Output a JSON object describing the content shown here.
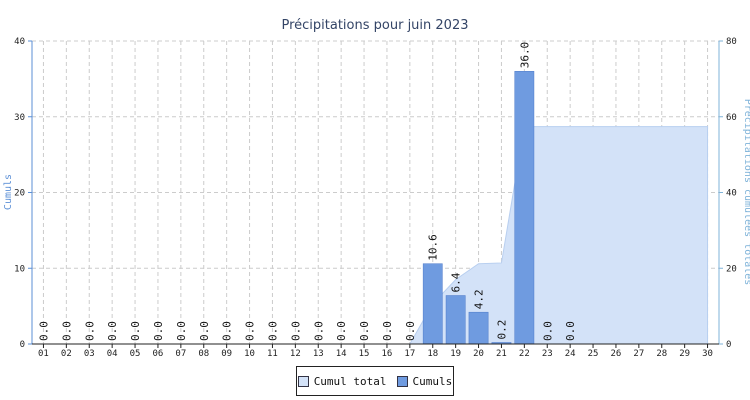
{
  "chart_data": {
    "type": "bar",
    "title": "Précipitations pour juin 2023",
    "categories": [
      "01",
      "02",
      "03",
      "04",
      "05",
      "06",
      "07",
      "08",
      "09",
      "10",
      "11",
      "12",
      "13",
      "14",
      "15",
      "16",
      "17",
      "18",
      "19",
      "20",
      "21",
      "22",
      "23",
      "24",
      "25",
      "26",
      "27",
      "28",
      "29",
      "30"
    ],
    "series": [
      {
        "name": "Cumuls",
        "type": "bar",
        "axis": "left",
        "values": [
          0,
          0,
          0,
          0,
          0,
          0,
          0,
          0,
          0,
          0,
          0,
          0,
          0,
          0,
          0,
          0,
          0,
          10.6,
          6.4,
          4.2,
          0.2,
          36.0,
          0,
          0,
          null,
          null,
          null,
          null,
          null,
          null
        ],
        "labels": [
          "0.0",
          "0.0",
          "0.0",
          "0.0",
          "0.0",
          "0.0",
          "0.0",
          "0.0",
          "0.0",
          "0.0",
          "0.0",
          "0.0",
          "0.0",
          "0.0",
          "0.0",
          "0.0",
          "0.0",
          "10.6",
          "6.4",
          "4.2",
          "0.2",
          "36.0",
          "0.0",
          "0.0",
          "",
          "",
          "",
          "",
          "",
          ""
        ]
      },
      {
        "name": "Cumul total",
        "type": "area",
        "axis": "right",
        "values": [
          0,
          0,
          0,
          0,
          0,
          0,
          0,
          0,
          0,
          0,
          0,
          0,
          0,
          0,
          0,
          0,
          0,
          10.6,
          17.0,
          21.2,
          21.4,
          57.4,
          57.4,
          57.4,
          57.4,
          57.4,
          57.4,
          57.4,
          57.4,
          57.4
        ]
      }
    ],
    "ylabel": "Cumuls",
    "y2label": "Précipitations cumulées totales",
    "ylim": [
      0,
      40
    ],
    "y2lim": [
      0,
      80
    ],
    "yticks": [
      "0",
      "10",
      "20",
      "30",
      "40"
    ],
    "y2ticks": [
      "0",
      "20",
      "40",
      "60",
      "80"
    ],
    "grid": true,
    "legend_position": "bottom-center",
    "colors": {
      "bar": "#6f9be0",
      "bar_edge": "#4a78c8",
      "area": "#d3e2f8",
      "area_edge": "#b8cff0",
      "grid": "#cccccc",
      "right_axis": "#7fb3d9"
    }
  }
}
